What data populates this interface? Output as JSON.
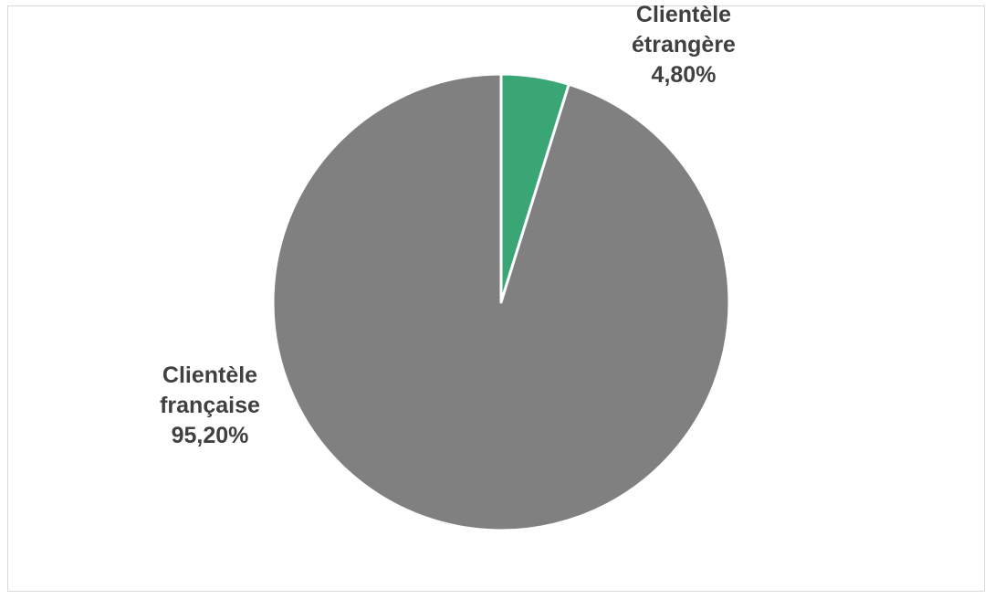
{
  "chart_data": {
    "type": "pie",
    "slices": [
      {
        "label_lines": [
          "Clientèle",
          "étrangère"
        ],
        "value_label": "4,80%",
        "value": 4.8,
        "color": "#3aa676"
      },
      {
        "label_lines": [
          "Clientèle",
          "française"
        ],
        "value_label": "95,20%",
        "value": 95.2,
        "color": "#808080"
      }
    ],
    "start_angle_deg": 0,
    "direction": "clockwise",
    "slice_border_color": "#ffffff",
    "label_color": "#404040",
    "legend": "none"
  }
}
